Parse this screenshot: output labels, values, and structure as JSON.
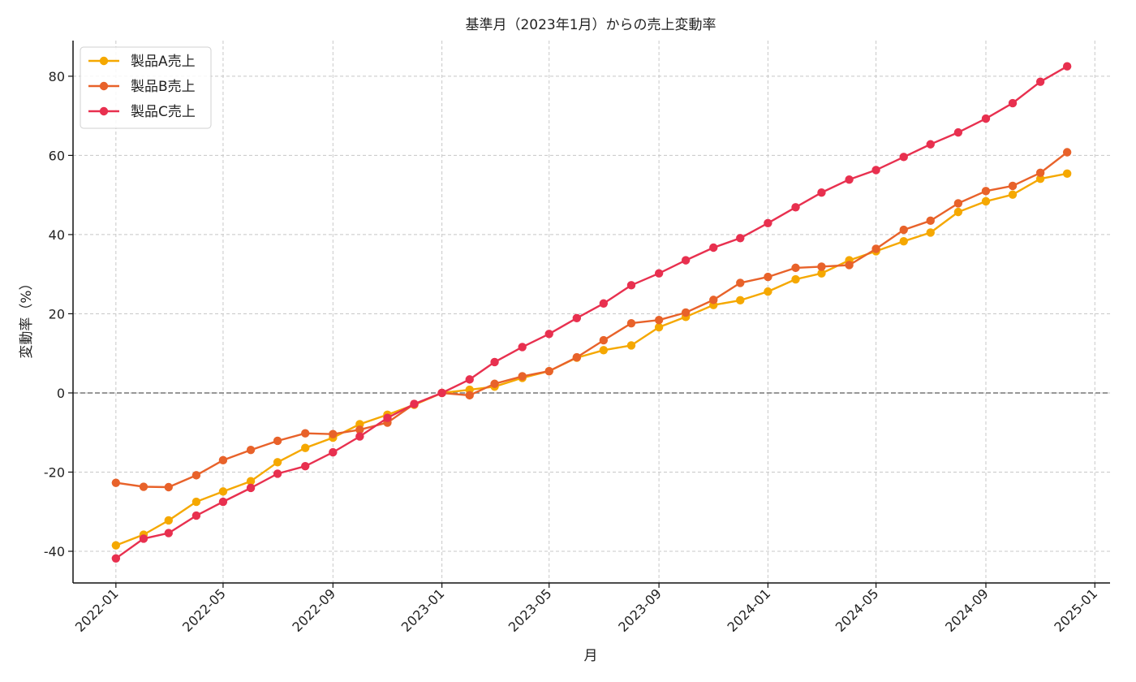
{
  "chart_data": {
    "type": "line",
    "title": "基準月（2023年1月）からの売上変動率",
    "xlabel": "月",
    "ylabel": "変動率（%）",
    "ylim": [
      -48,
      89
    ],
    "xlim": [
      "2021-11-14",
      "2025-01-18"
    ],
    "yticks": [
      -40,
      -20,
      0,
      20,
      40,
      60,
      80
    ],
    "xticks": [
      "2022-01",
      "2022-05",
      "2022-09",
      "2023-01",
      "2023-05",
      "2023-09",
      "2024-01",
      "2024-05",
      "2024-09",
      "2025-01"
    ],
    "grid": true,
    "baseline": 0,
    "legend_position": "top-left",
    "x": [
      "2022-01",
      "2022-02",
      "2022-03",
      "2022-04",
      "2022-05",
      "2022-06",
      "2022-07",
      "2022-08",
      "2022-09",
      "2022-10",
      "2022-11",
      "2022-12",
      "2023-01",
      "2023-02",
      "2023-03",
      "2023-04",
      "2023-05",
      "2023-06",
      "2023-07",
      "2023-08",
      "2023-09",
      "2023-10",
      "2023-11",
      "2023-12",
      "2024-01",
      "2024-02",
      "2024-03",
      "2024-04",
      "2024-05",
      "2024-06",
      "2024-07",
      "2024-08",
      "2024-09",
      "2024-10",
      "2024-11",
      "2024-12"
    ],
    "series": [
      {
        "name": "製品A売上",
        "color": "#F5A800",
        "values": [
          -38.5,
          -35.8,
          -32.2,
          -27.5,
          -24.9,
          -22.3,
          -17.5,
          -13.9,
          -11.3,
          -7.9,
          -5.5,
          -3.0,
          0.0,
          0.8,
          1.6,
          3.8,
          5.5,
          8.9,
          10.8,
          12.0,
          16.6,
          19.2,
          22.2,
          23.4,
          25.6,
          28.7,
          30.2,
          33.5,
          35.8,
          38.3,
          40.5,
          45.7,
          48.4,
          50.1,
          54.1,
          55.4
        ]
      },
      {
        "name": "製品B売上",
        "color": "#E8622A",
        "values": [
          -22.7,
          -23.7,
          -23.8,
          -20.8,
          -17.0,
          -14.4,
          -12.1,
          -10.2,
          -10.4,
          -9.3,
          -7.5,
          -2.8,
          0.0,
          -0.6,
          2.3,
          4.2,
          5.5,
          9.0,
          13.3,
          17.6,
          18.4,
          20.3,
          23.5,
          27.8,
          29.3,
          31.6,
          31.9,
          32.3,
          36.4,
          41.2,
          43.5,
          47.9,
          51.0,
          52.3,
          55.6,
          60.8
        ]
      },
      {
        "name": "製品C売上",
        "color": "#E8304F",
        "values": [
          -41.8,
          -36.8,
          -35.4,
          -31.0,
          -27.5,
          -24.0,
          -20.4,
          -18.5,
          -15.0,
          -11.0,
          -6.3,
          -2.8,
          0.0,
          3.4,
          7.8,
          11.6,
          14.9,
          18.9,
          22.6,
          27.2,
          30.2,
          33.5,
          36.7,
          39.1,
          42.9,
          46.9,
          50.6,
          53.9,
          56.3,
          59.6,
          62.8,
          65.8,
          69.3,
          73.2,
          78.6,
          82.5
        ]
      }
    ]
  }
}
